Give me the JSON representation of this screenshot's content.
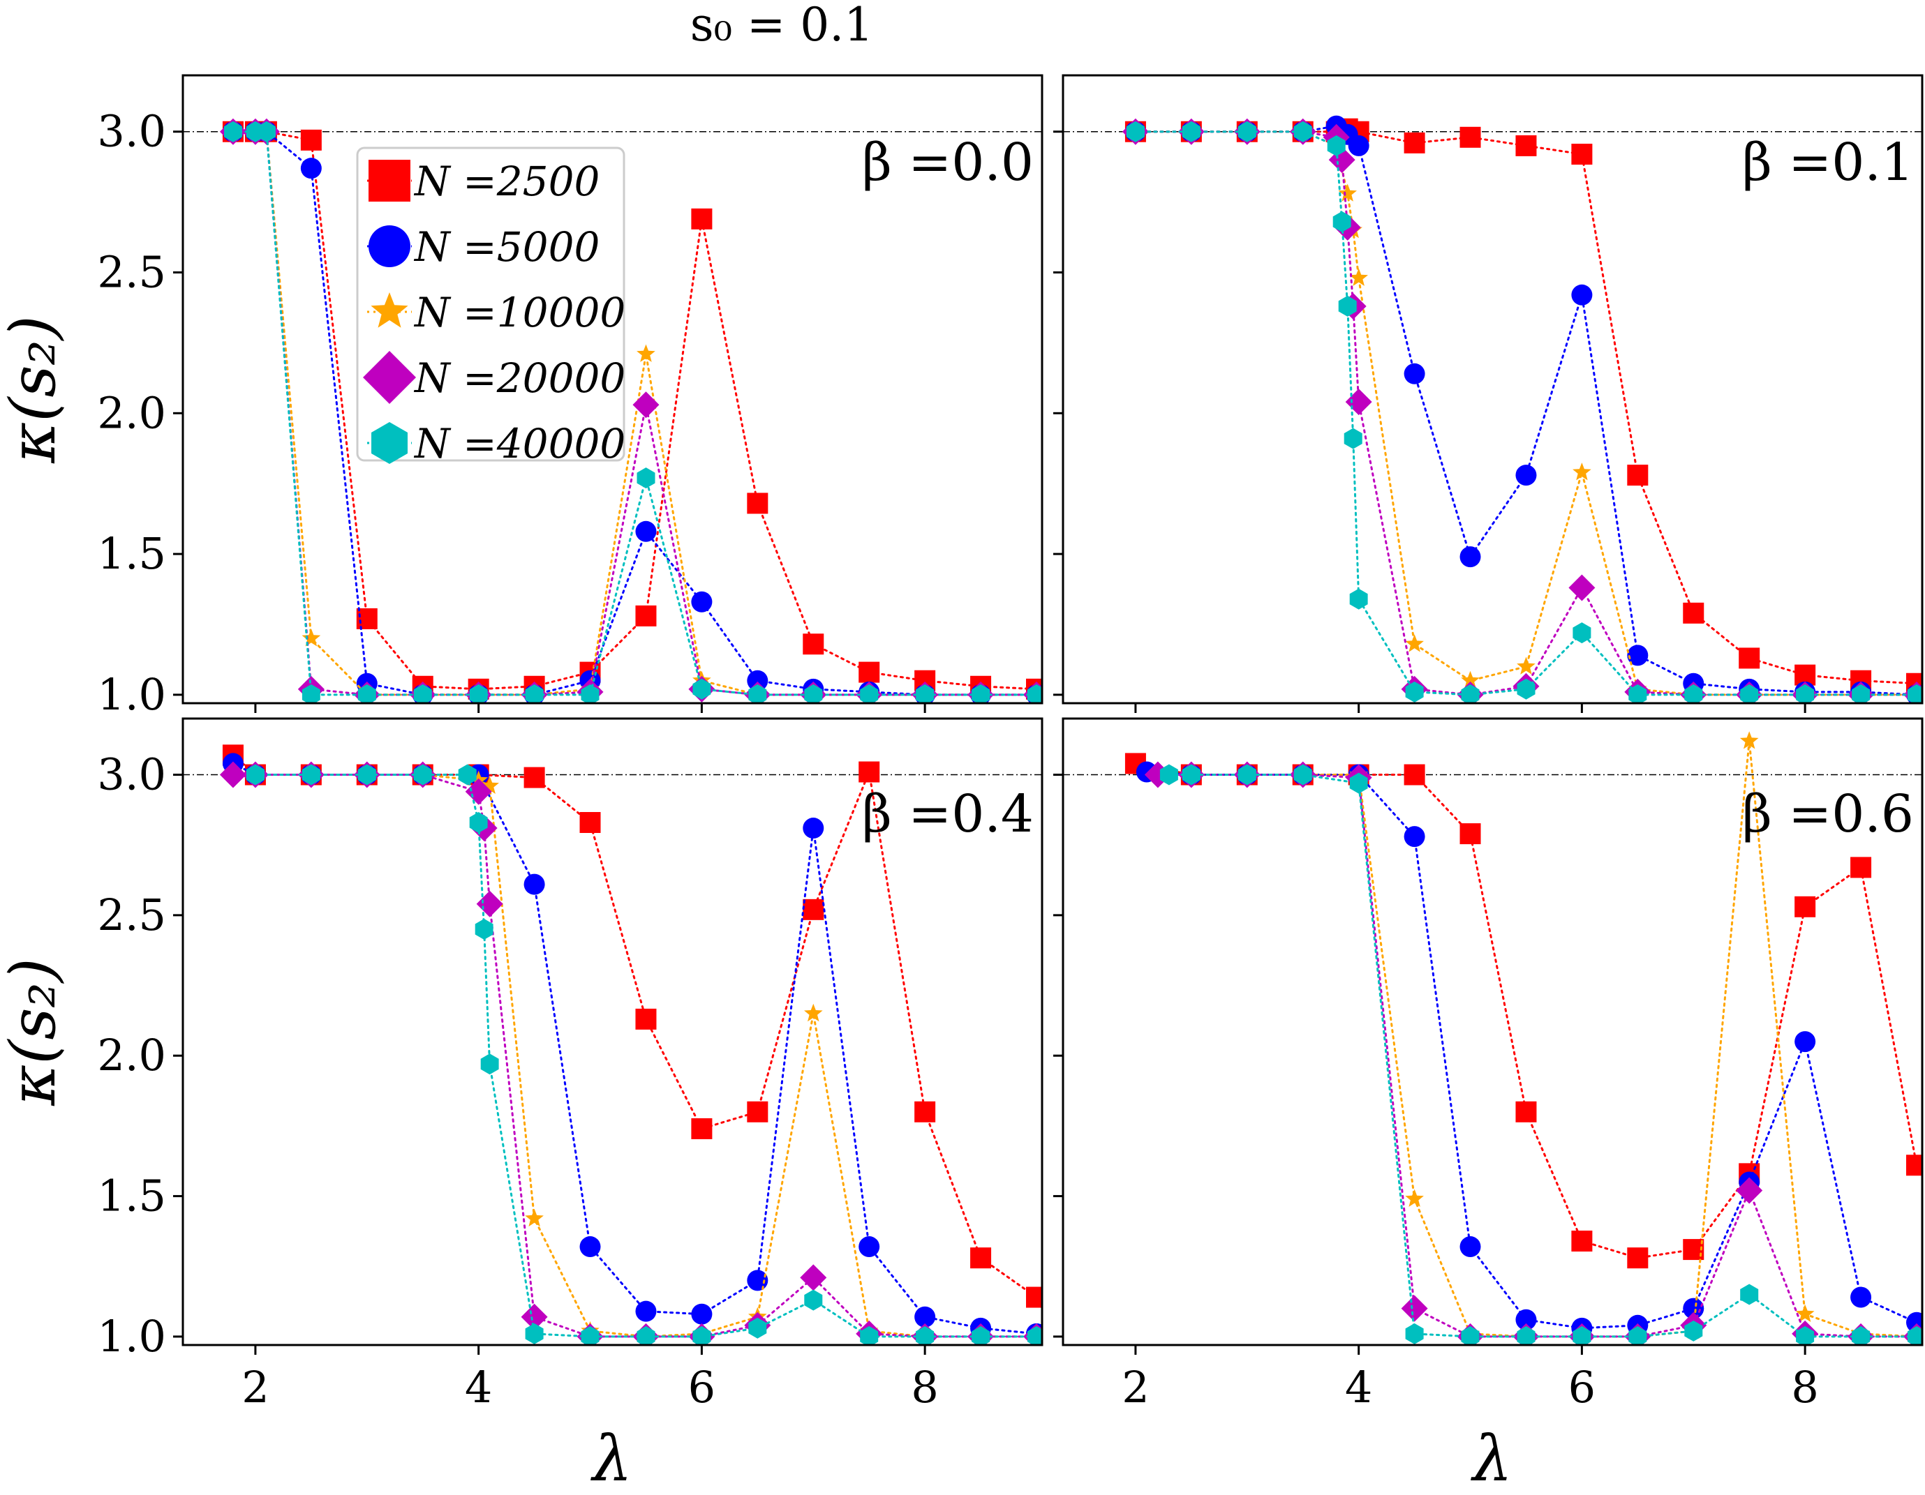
{
  "chart_data": {
    "type": "line",
    "title": "s₀ = 0.1",
    "xlabel": "λ",
    "ylabel": "κ(s₂)",
    "xlim": [
      1.35,
      9.05
    ],
    "ylim": [
      0.97,
      3.2
    ],
    "xticks": [
      2,
      4,
      6,
      8
    ],
    "yticks": [
      1.0,
      1.5,
      2.0,
      2.5,
      3.0
    ],
    "xtick_labels": [
      "2",
      "4",
      "6",
      "8"
    ],
    "ytick_labels": [
      "1.0",
      "1.5",
      "2.0",
      "2.5",
      "3.0"
    ],
    "reference_line": 3.0,
    "legend": {
      "placement": "upper-left of first panel",
      "entries": [
        {
          "label": "N =2500",
          "color": "#ff0000",
          "marker": "square"
        },
        {
          "label": "N =5000",
          "color": "#0000ff",
          "marker": "circle"
        },
        {
          "label": "N =10000",
          "color": "#ffa500",
          "marker": "star"
        },
        {
          "label": "N =20000",
          "color": "#bf00bf",
          "marker": "diamond"
        },
        {
          "label": "N =40000",
          "color": "#00bfbf",
          "marker": "hexagon"
        }
      ]
    },
    "panels": [
      {
        "label": "β =0.0",
        "series": [
          {
            "name": "N =2500",
            "x": [
              1.8,
              2.0,
              2.1,
              2.5,
              3.0,
              3.5,
              4.0,
              4.5,
              5.0,
              5.5,
              6.0,
              6.5,
              7.0,
              7.5,
              8.0,
              8.5,
              9.0
            ],
            "y": [
              3.0,
              3.0,
              3.0,
              2.97,
              1.27,
              1.03,
              1.02,
              1.03,
              1.08,
              1.28,
              2.69,
              1.68,
              1.18,
              1.08,
              1.05,
              1.03,
              1.02
            ]
          },
          {
            "name": "N =5000",
            "x": [
              1.8,
              2.0,
              2.1,
              2.5,
              3.0,
              3.5,
              4.0,
              4.5,
              5.0,
              5.5,
              6.0,
              6.5,
              7.0,
              7.5,
              8.0,
              8.5,
              9.0
            ],
            "y": [
              3.0,
              3.0,
              3.0,
              2.87,
              1.04,
              1.0,
              1.0,
              1.0,
              1.05,
              1.58,
              1.33,
              1.05,
              1.02,
              1.01,
              1.0,
              1.0,
              1.0
            ]
          },
          {
            "name": "N =10000",
            "x": [
              1.8,
              2.0,
              2.1,
              2.5,
              3.0,
              3.5,
              4.0,
              4.5,
              5.0,
              5.5,
              6.0,
              6.5,
              7.0,
              7.5,
              8.0,
              8.5,
              9.0
            ],
            "y": [
              3.0,
              3.0,
              3.0,
              1.2,
              1.0,
              1.0,
              1.0,
              1.0,
              1.02,
              2.21,
              1.05,
              1.0,
              1.0,
              1.0,
              1.0,
              1.0,
              1.0
            ]
          },
          {
            "name": "N =20000",
            "x": [
              1.8,
              2.0,
              2.1,
              2.5,
              3.0,
              3.5,
              4.0,
              4.5,
              5.0,
              5.5,
              6.0,
              6.5,
              7.0,
              7.5,
              8.0,
              8.5,
              9.0
            ],
            "y": [
              3.0,
              3.0,
              3.0,
              1.02,
              1.0,
              1.0,
              1.0,
              1.0,
              1.01,
              2.03,
              1.02,
              1.0,
              1.0,
              1.0,
              1.0,
              1.0,
              1.0
            ]
          },
          {
            "name": "N =40000",
            "x": [
              1.8,
              2.0,
              2.1,
              2.5,
              3.0,
              3.5,
              4.0,
              4.5,
              5.0,
              5.5,
              6.0,
              6.5,
              7.0,
              7.5,
              8.0,
              8.5,
              9.0
            ],
            "y": [
              3.0,
              3.0,
              3.0,
              1.0,
              1.0,
              1.0,
              1.0,
              1.0,
              1.0,
              1.77,
              1.02,
              1.0,
              1.0,
              1.0,
              1.0,
              1.0,
              1.0
            ]
          }
        ]
      },
      {
        "label": "β =0.1",
        "series": [
          {
            "name": "N =2500",
            "x": [
              2.0,
              2.5,
              3.0,
              3.5,
              3.8,
              3.9,
              4.0,
              4.5,
              5.0,
              5.5,
              6.0,
              6.5,
              7.0,
              7.5,
              8.0,
              8.5,
              9.0
            ],
            "y": [
              3.0,
              3.0,
              3.0,
              3.0,
              3.0,
              3.01,
              3.0,
              2.96,
              2.98,
              2.95,
              2.92,
              1.78,
              1.29,
              1.13,
              1.07,
              1.05,
              1.04
            ]
          },
          {
            "name": "N =5000",
            "x": [
              2.0,
              2.5,
              3.0,
              3.5,
              3.8,
              3.9,
              4.0,
              4.5,
              5.0,
              5.5,
              6.0,
              6.5,
              7.0,
              7.5,
              8.0,
              8.5,
              9.0
            ],
            "y": [
              3.0,
              3.0,
              3.0,
              3.0,
              3.02,
              2.99,
              2.95,
              2.14,
              1.49,
              1.78,
              2.42,
              1.14,
              1.04,
              1.02,
              1.01,
              1.01,
              1.0
            ]
          },
          {
            "name": "N =10000",
            "x": [
              2.0,
              2.5,
              3.0,
              3.5,
              3.8,
              3.9,
              3.95,
              4.0,
              4.5,
              5.0,
              5.5,
              6.0,
              6.5,
              7.0,
              7.5,
              8.0,
              8.5,
              9.0
            ],
            "y": [
              3.0,
              3.0,
              3.0,
              3.0,
              2.95,
              2.78,
              2.65,
              2.48,
              1.18,
              1.05,
              1.1,
              1.79,
              1.02,
              1.0,
              1.0,
              1.0,
              1.0,
              1.0
            ]
          },
          {
            "name": "N =20000",
            "x": [
              2.0,
              2.5,
              3.0,
              3.5,
              3.8,
              3.85,
              3.9,
              3.95,
              4.0,
              4.5,
              5.0,
              5.5,
              6.0,
              6.5,
              7.0,
              7.5,
              8.0,
              8.5,
              9.0
            ],
            "y": [
              3.0,
              3.0,
              3.0,
              3.0,
              2.98,
              2.9,
              2.66,
              2.38,
              2.04,
              1.02,
              1.0,
              1.03,
              1.38,
              1.01,
              1.0,
              1.0,
              1.0,
              1.0,
              1.0
            ]
          },
          {
            "name": "N =40000",
            "x": [
              2.0,
              2.5,
              3.0,
              3.5,
              3.8,
              3.85,
              3.9,
              3.95,
              4.0,
              4.5,
              5.0,
              5.5,
              6.0,
              6.5,
              7.0,
              7.5,
              8.0,
              8.5,
              9.0
            ],
            "y": [
              3.0,
              3.0,
              3.0,
              3.0,
              2.95,
              2.68,
              2.38,
              1.91,
              1.34,
              1.01,
              1.0,
              1.02,
              1.22,
              1.0,
              1.0,
              1.0,
              1.0,
              1.0,
              1.0
            ]
          }
        ]
      },
      {
        "label": "β =0.4",
        "series": [
          {
            "name": "N =2500",
            "x": [
              1.8,
              2.0,
              2.5,
              3.0,
              3.5,
              4.0,
              4.5,
              5.0,
              5.5,
              6.0,
              6.5,
              7.0,
              7.5,
              8.0,
              8.5,
              9.0
            ],
            "y": [
              3.07,
              3.0,
              3.0,
              3.0,
              3.0,
              3.0,
              2.99,
              2.83,
              2.13,
              1.74,
              1.8,
              2.52,
              3.01,
              1.8,
              1.28,
              1.14
            ]
          },
          {
            "name": "N =5000",
            "x": [
              1.8,
              2.0,
              2.5,
              3.0,
              3.5,
              4.0,
              4.5,
              5.0,
              5.5,
              6.0,
              6.5,
              7.0,
              7.5,
              8.0,
              8.5,
              9.0
            ],
            "y": [
              3.04,
              3.0,
              3.0,
              3.0,
              3.0,
              3.0,
              2.61,
              1.32,
              1.09,
              1.08,
              1.2,
              2.81,
              1.32,
              1.07,
              1.03,
              1.01
            ]
          },
          {
            "name": "N =10000",
            "x": [
              1.8,
              2.0,
              2.5,
              3.0,
              3.5,
              4.0,
              4.1,
              4.5,
              5.0,
              5.5,
              6.0,
              6.5,
              7.0,
              7.5,
              8.0,
              8.5,
              9.0
            ],
            "y": [
              3.0,
              3.0,
              3.0,
              3.0,
              3.0,
              2.98,
              2.96,
              1.42,
              1.02,
              1.0,
              1.01,
              1.07,
              2.15,
              1.02,
              1.0,
              1.0,
              1.0
            ]
          },
          {
            "name": "N =20000",
            "x": [
              1.8,
              2.0,
              2.5,
              3.0,
              3.5,
              4.0,
              4.05,
              4.1,
              4.5,
              5.0,
              5.5,
              6.0,
              6.5,
              7.0,
              7.5,
              8.0,
              8.5,
              9.0
            ],
            "y": [
              3.0,
              3.0,
              3.0,
              3.0,
              3.0,
              2.94,
              2.81,
              2.54,
              1.07,
              1.0,
              1.0,
              1.0,
              1.04,
              1.21,
              1.01,
              1.0,
              1.0,
              1.0
            ]
          },
          {
            "name": "N =40000",
            "x": [
              2.0,
              2.5,
              3.0,
              3.5,
              3.9,
              4.0,
              4.05,
              4.1,
              4.5,
              5.0,
              5.5,
              6.0,
              6.5,
              7.0,
              7.5,
              8.0,
              8.5,
              9.0
            ],
            "y": [
              3.0,
              3.0,
              3.0,
              3.0,
              3.0,
              2.83,
              2.45,
              1.97,
              1.01,
              1.0,
              1.0,
              1.0,
              1.03,
              1.13,
              1.0,
              1.0,
              1.0,
              1.0
            ]
          }
        ]
      },
      {
        "label": "β =0.6",
        "series": [
          {
            "name": "N =2500",
            "x": [
              2.0,
              2.5,
              3.0,
              3.5,
              4.0,
              4.5,
              5.0,
              5.5,
              6.0,
              6.5,
              7.0,
              7.5,
              8.0,
              8.5,
              9.0
            ],
            "y": [
              3.04,
              3.0,
              3.0,
              3.0,
              3.0,
              3.0,
              2.79,
              1.8,
              1.34,
              1.28,
              1.31,
              1.58,
              2.53,
              2.67,
              1.61
            ]
          },
          {
            "name": "N =5000",
            "x": [
              2.1,
              2.5,
              3.0,
              3.5,
              4.0,
              4.5,
              5.0,
              5.5,
              6.0,
              6.5,
              7.0,
              7.5,
              8.0,
              8.5,
              9.0
            ],
            "y": [
              3.01,
              3.0,
              3.0,
              3.0,
              3.0,
              2.78,
              1.32,
              1.06,
              1.03,
              1.04,
              1.1,
              1.55,
              2.05,
              1.14,
              1.05
            ]
          },
          {
            "name": "N =10000",
            "x": [
              2.2,
              2.5,
              3.0,
              3.5,
              4.0,
              4.5,
              5.0,
              5.5,
              6.0,
              6.5,
              7.0,
              7.5,
              8.0,
              8.5,
              9.0
            ],
            "y": [
              3.0,
              3.0,
              3.0,
              3.0,
              3.0,
              1.49,
              1.01,
              1.0,
              1.0,
              1.0,
              1.02,
              3.12,
              1.08,
              1.01,
              1.0
            ]
          },
          {
            "name": "N =20000",
            "x": [
              2.2,
              2.5,
              3.0,
              3.5,
              4.0,
              4.5,
              5.0,
              5.5,
              6.0,
              6.5,
              7.0,
              7.5,
              8.0,
              8.5,
              9.0
            ],
            "y": [
              3.0,
              3.0,
              3.0,
              3.0,
              2.99,
              1.1,
              1.0,
              1.0,
              1.0,
              1.0,
              1.04,
              1.52,
              1.01,
              1.0,
              1.0
            ]
          },
          {
            "name": "N =40000",
            "x": [
              2.3,
              2.5,
              3.0,
              3.5,
              4.0,
              4.5,
              5.0,
              5.5,
              6.0,
              6.5,
              7.0,
              7.5,
              8.0,
              8.5,
              9.0
            ],
            "y": [
              3.0,
              3.0,
              3.0,
              3.0,
              2.97,
              1.01,
              1.0,
              1.0,
              1.0,
              1.0,
              1.02,
              1.15,
              1.0,
              1.0,
              1.0
            ]
          }
        ]
      }
    ]
  }
}
